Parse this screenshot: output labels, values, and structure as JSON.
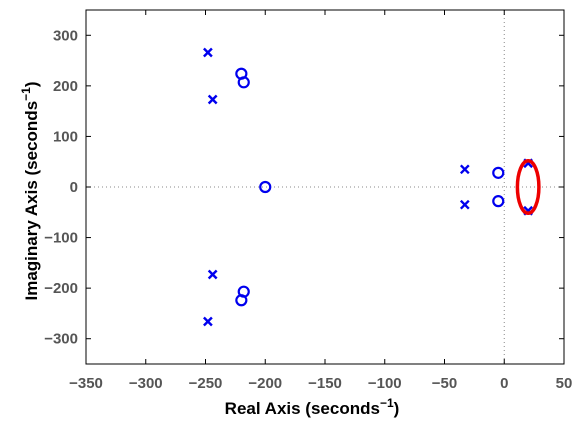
{
  "chart_data": {
    "type": "scatter",
    "title": "",
    "xlabel": "Real Axis (seconds",
    "xlabel_sup": "−1",
    "xlabel_close": ")",
    "ylabel": "Imaginary Axis (seconds",
    "ylabel_sup": "−1",
    "ylabel_close": ")",
    "xlim": [
      -350,
      50
    ],
    "ylim": [
      -350,
      350
    ],
    "x_ticks": [
      -350,
      -300,
      -250,
      -200,
      -150,
      -100,
      -50,
      0,
      50
    ],
    "y_ticks": [
      -300,
      -200,
      -100,
      0,
      100,
      200,
      300
    ],
    "x_tick_labels": [
      "−350",
      "−300",
      "−250",
      "−200",
      "−150",
      "−100",
      "−50",
      "0",
      "50"
    ],
    "y_tick_labels": [
      "−300",
      "−200",
      "−100",
      "0",
      "100",
      "200",
      "300"
    ],
    "grid": false,
    "reference_lines": {
      "x": 0,
      "y": 0,
      "style": "dotted"
    },
    "marker_color": "#0000ee",
    "poles": [
      {
        "x": -248,
        "y": 266
      },
      {
        "x": -244,
        "y": 173
      },
      {
        "x": -33,
        "y": 35
      },
      {
        "x": -33,
        "y": -35
      },
      {
        "x": 20,
        "y": 47
      },
      {
        "x": 20,
        "y": -47
      },
      {
        "x": -244,
        "y": -173
      },
      {
        "x": -248,
        "y": -266
      }
    ],
    "zeros": [
      {
        "x": -220,
        "y": 224
      },
      {
        "x": -218,
        "y": 207
      },
      {
        "x": -200,
        "y": 0
      },
      {
        "x": -5,
        "y": 28
      },
      {
        "x": -5,
        "y": -28
      },
      {
        "x": -218,
        "y": -207
      },
      {
        "x": -220,
        "y": -224
      }
    ],
    "highlight": {
      "type": "ellipse",
      "color": "#ee0000",
      "cx": 20,
      "cy": 0,
      "rx": 9,
      "ry": 52
    }
  }
}
